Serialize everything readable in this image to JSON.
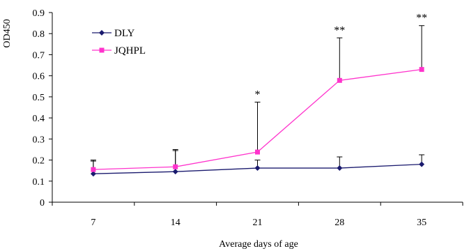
{
  "chart_data": {
    "type": "line",
    "title": "",
    "xlabel": "Average days of age",
    "ylabel": "OD450",
    "x": [
      7,
      14,
      21,
      28,
      35
    ],
    "x_tick_labels": [
      "7",
      "14",
      "21",
      "28",
      "35"
    ],
    "ylim": [
      0,
      0.9
    ],
    "y_ticks": [
      0,
      0.1,
      0.2,
      0.3,
      0.4,
      0.5,
      0.6,
      0.7,
      0.8,
      0.9
    ],
    "y_tick_labels": [
      "0",
      "0.1",
      "0.2",
      "0.3",
      "0.4",
      "0.5",
      "0.6",
      "0.7",
      "0.8",
      "0.9"
    ],
    "grid": false,
    "legend_position": "top-left",
    "series": [
      {
        "name": "DLY",
        "color": "#1a1a6e",
        "marker": "diamond",
        "values": [
          0.135,
          0.145,
          0.162,
          0.162,
          0.18
        ],
        "error_upper": [
          0.2,
          0.25,
          0.2,
          0.215,
          0.225
        ]
      },
      {
        "name": "JQHPL",
        "color": "#ff33cc",
        "marker": "square",
        "values": [
          0.155,
          0.168,
          0.238,
          0.578,
          0.63
        ],
        "error_upper": [
          0.195,
          0.245,
          0.475,
          0.78,
          0.838
        ]
      }
    ],
    "annotations": [
      {
        "x": 21,
        "text": "*"
      },
      {
        "x": 28,
        "text": "**"
      },
      {
        "x": 35,
        "text": "**"
      }
    ]
  }
}
